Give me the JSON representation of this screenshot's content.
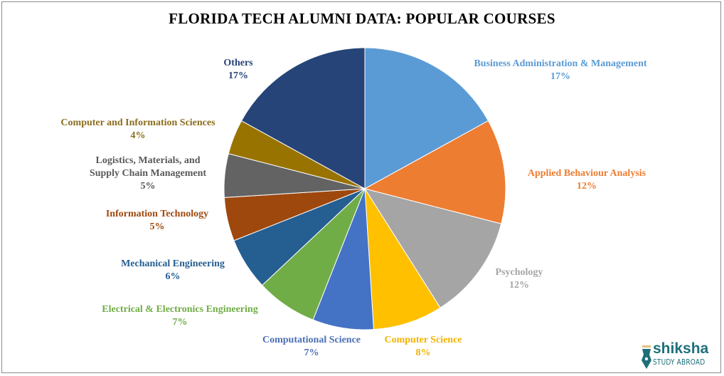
{
  "chart_data": {
    "type": "pie",
    "title": "FLORIDA TECH ALUMNI DATA: POPULAR COURSES",
    "start_angle": "top",
    "direction": "clockwise",
    "slices": [
      {
        "label_lines": [
          "Business Administration  & Management"
        ],
        "value": 17,
        "value_label": "17%",
        "color": "#5B9BD5",
        "label_color": "#5B9BD5"
      },
      {
        "label_lines": [
          "Applied  Behaviour Analysis"
        ],
        "value": 12,
        "value_label": "12%",
        "color": "#ED7D31",
        "label_color": "#ED7D31"
      },
      {
        "label_lines": [
          "Psychology"
        ],
        "value": 12,
        "value_label": "12%",
        "color": "#A5A5A5",
        "label_color": "#A5A5A5"
      },
      {
        "label_lines": [
          "Computer Science"
        ],
        "value": 8,
        "value_label": "8%",
        "color": "#FFC000",
        "label_color": "#F2B200"
      },
      {
        "label_lines": [
          "Computational  Science"
        ],
        "value": 7,
        "value_label": "7%",
        "color": "#4472C4",
        "label_color": "#4A6FB5"
      },
      {
        "label_lines": [
          "Electrical & Electronics Engineering"
        ],
        "value": 7,
        "value_label": "7%",
        "color": "#70AD47",
        "label_color": "#70AD47"
      },
      {
        "label_lines": [
          "Mechanical Engineering"
        ],
        "value": 6,
        "value_label": "6%",
        "color": "#255E91",
        "label_color": "#255E91"
      },
      {
        "label_lines": [
          "Information Technology"
        ],
        "value": 5,
        "value_label": "5%",
        "color": "#9E480E",
        "label_color": "#9E480E"
      },
      {
        "label_lines": [
          "Logistics, Materials, and",
          "Supply  Chain  Management"
        ],
        "value": 5,
        "value_label": "5%",
        "color": "#636363",
        "label_color": "#595959"
      },
      {
        "label_lines": [
          "Computer  and  Information  Sciences"
        ],
        "value": 4,
        "value_label": "4%",
        "color": "#997300",
        "label_color": "#8B6D1C"
      },
      {
        "label_lines": [
          "Others"
        ],
        "value": 17,
        "value_label": "17%",
        "color": "#264478",
        "label_color": "#264478"
      }
    ]
  },
  "logo": {
    "brand": "shiksha",
    "tagline": "STUDY ABROAD",
    "color": "#1E6F7A"
  }
}
